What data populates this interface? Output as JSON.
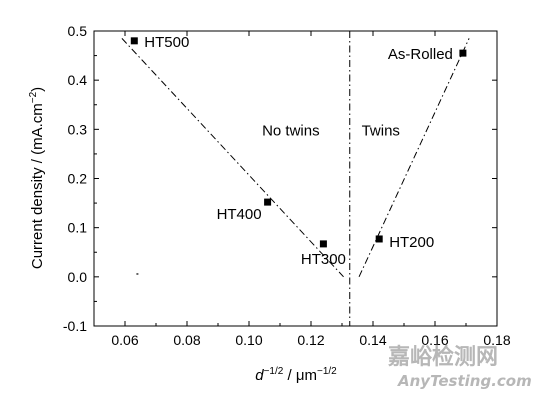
{
  "chart_data": {
    "type": "scatter",
    "xlabel": {
      "main": "d",
      "sup1": "−1/2",
      "mid": " / μm",
      "sup2": "−1/2"
    },
    "ylabel": {
      "main": "Current density / (mA.cm",
      "sup": "−2",
      "end": ")"
    },
    "xlim": [
      0.05,
      0.18
    ],
    "ylim": [
      -0.1,
      0.5
    ],
    "xticks": [
      0.06,
      0.08,
      0.1,
      0.12,
      0.14,
      0.16,
      0.18
    ],
    "xtick_labels": [
      "0.06",
      "0.08",
      "0.10",
      "0.12",
      "0.14",
      "0.16",
      "0.18"
    ],
    "yticks": [
      -0.1,
      0.0,
      0.1,
      0.2,
      0.3,
      0.4,
      0.5
    ],
    "ytick_labels": [
      "-0.1",
      "0.0",
      "0.1",
      "0.2",
      "0.3",
      "0.4",
      "0.5"
    ],
    "points": [
      {
        "label": "HT500",
        "x": 0.063,
        "y": 0.48
      },
      {
        "label": "HT400",
        "x": 0.106,
        "y": 0.152
      },
      {
        "label": "HT300",
        "x": 0.124,
        "y": 0.067
      },
      {
        "label": "HT200",
        "x": 0.142,
        "y": 0.077
      },
      {
        "label": "As-Rolled",
        "x": 0.169,
        "y": 0.455
      }
    ],
    "stray_mark": {
      "x": 0.064,
      "y": 0.006
    },
    "fit_lines": [
      {
        "x": [
          0.059,
          0.1305
        ],
        "y": [
          0.485,
          0.0
        ]
      },
      {
        "x": [
          0.1355,
          0.171
        ],
        "y": [
          0.0,
          0.485
        ]
      }
    ],
    "boundary_x": 0.1325,
    "region_labels": [
      {
        "text": "No twins",
        "x": 0.1135,
        "y": 0.287
      },
      {
        "text": "Twins",
        "x": 0.1425,
        "y": 0.287
      }
    ]
  },
  "watermark": {
    "cn": "嘉峪检测网",
    "en": "AnyTesting.com"
  }
}
